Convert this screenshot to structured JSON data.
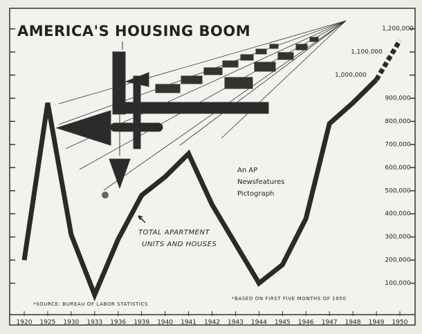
{
  "chart_data": {
    "type": "line",
    "title": "AMERICA'S HOUSING BOOM",
    "credit": [
      "An AP",
      "Newsfeatures",
      "Pictograph"
    ],
    "series_label": [
      "TOTAL APARTMENT",
      "UNITS AND HOUSES"
    ],
    "source": "*SOURCE: BUREAU OF LABOR STATISTICS",
    "footnote": "*BASED ON FIRST FIVE MONTHS OF 1950",
    "categories": [
      "1920",
      "1925",
      "1930",
      "1933",
      "1936",
      "1939",
      "1940",
      "1941",
      "1942",
      "1943",
      "1944",
      "1945",
      "1946",
      "1947",
      "1948",
      "1949",
      "1950"
    ],
    "values": [
      200000,
      880000,
      310000,
      50000,
      290000,
      480000,
      560000,
      660000,
      440000,
      270000,
      100000,
      180000,
      380000,
      790000,
      880000,
      980000,
      1150000
    ],
    "color": "#2a2a2a",
    "dashed_last_segment": true,
    "ylim": [
      0,
      1250000
    ],
    "yticks": [
      {
        "value": 100000,
        "label": "100,000"
      },
      {
        "value": 200000,
        "label": "200,000"
      },
      {
        "value": 300000,
        "label": "300,000"
      },
      {
        "value": 400000,
        "label": "400,000"
      },
      {
        "value": 500000,
        "label": "500,000"
      },
      {
        "value": 600000,
        "label": "600,000"
      },
      {
        "value": 700000,
        "label": "700,000"
      },
      {
        "value": 800000,
        "label": "800,000"
      },
      {
        "value": 900000,
        "label": "900,000"
      },
      {
        "value": 1000000,
        "label": "1,000,000"
      },
      {
        "value": 1100000,
        "label": "1,100,000"
      },
      {
        "value": 1200000,
        "label": "1,200,000"
      }
    ]
  }
}
